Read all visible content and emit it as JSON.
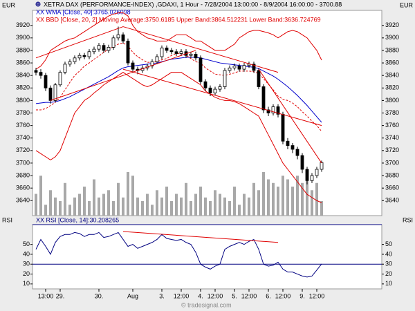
{
  "chart_data": [
    {
      "type": "candlestick",
      "title": "XETRA DAX (PERFORMANCE-INDEX) ,GDAXI, 1 Hour - 7/28/2004 13:00:00 - 8/9/2004 16:00:00 - 3700.88",
      "axis_label": "EUR",
      "credit": "© tradesignal.com",
      "categories": [
        null,
        null,
        "13:00",
        null,
        null,
        "29.",
        null,
        null,
        null,
        null,
        null,
        null,
        null,
        "30.",
        null,
        null,
        null,
        null,
        null,
        null,
        "Aug",
        null,
        null,
        null,
        null,
        null,
        "3.",
        null,
        null,
        null,
        "12:00",
        null,
        null,
        null,
        "4.",
        null,
        null,
        "12:00",
        null,
        null,
        null,
        "5.",
        null,
        null,
        "12:00",
        null,
        null,
        null,
        "6.",
        null,
        null,
        "12:00",
        null,
        null,
        null,
        "9.",
        null,
        null,
        "12:00",
        null
      ],
      "ohlc": [
        [
          3848,
          3852,
          3840,
          3845
        ],
        [
          3845,
          3850,
          3835,
          3840
        ],
        [
          3840,
          3844,
          3815,
          3820
        ],
        [
          3820,
          3824,
          3795,
          3800
        ],
        [
          3800,
          3828,
          3797,
          3825
        ],
        [
          3825,
          3848,
          3822,
          3845
        ],
        [
          3845,
          3862,
          3842,
          3858
        ],
        [
          3858,
          3866,
          3854,
          3862
        ],
        [
          3862,
          3872,
          3858,
          3868
        ],
        [
          3868,
          3876,
          3864,
          3872
        ],
        [
          3872,
          3876,
          3866,
          3870
        ],
        [
          3870,
          3882,
          3866,
          3878
        ],
        [
          3878,
          3886,
          3874,
          3882
        ],
        [
          3882,
          3892,
          3878,
          3888
        ],
        [
          3888,
          3892,
          3876,
          3880
        ],
        [
          3880,
          3889,
          3876,
          3885
        ],
        [
          3885,
          3904,
          3881,
          3900
        ],
        [
          3900,
          3918,
          3896,
          3905
        ],
        [
          3905,
          3909,
          3891,
          3895
        ],
        [
          3895,
          3899,
          3856,
          3860
        ],
        [
          3860,
          3864,
          3844,
          3850
        ],
        [
          3850,
          3854,
          3842,
          3848
        ],
        [
          3848,
          3856,
          3844,
          3852
        ],
        [
          3852,
          3859,
          3848,
          3855
        ],
        [
          3855,
          3866,
          3851,
          3862
        ],
        [
          3862,
          3874,
          3858,
          3870
        ],
        [
          3870,
          3888,
          3866,
          3884
        ],
        [
          3884,
          3888,
          3876,
          3880
        ],
        [
          3880,
          3884,
          3874,
          3878
        ],
        [
          3878,
          3882,
          3871,
          3875
        ],
        [
          3875,
          3882,
          3871,
          3878
        ],
        [
          3878,
          3882,
          3868,
          3872
        ],
        [
          3872,
          3878,
          3868,
          3874
        ],
        [
          3874,
          3878,
          3864,
          3868
        ],
        [
          3868,
          3872,
          3826,
          3830
        ],
        [
          3830,
          3834,
          3815,
          3820
        ],
        [
          3820,
          3824,
          3807,
          3812
        ],
        [
          3812,
          3822,
          3808,
          3818
        ],
        [
          3818,
          3826,
          3814,
          3822
        ],
        [
          3822,
          3852,
          3818,
          3848
        ],
        [
          3848,
          3856,
          3844,
          3852
        ],
        [
          3852,
          3859,
          3848,
          3855
        ],
        [
          3855,
          3859,
          3846,
          3850
        ],
        [
          3850,
          3860,
          3846,
          3856
        ],
        [
          3856,
          3862,
          3852,
          3858
        ],
        [
          3858,
          3862,
          3844,
          3848
        ],
        [
          3848,
          3852,
          3818,
          3822
        ],
        [
          3822,
          3826,
          3780,
          3785
        ],
        [
          3785,
          3790,
          3775,
          3780
        ],
        [
          3780,
          3794,
          3776,
          3790
        ],
        [
          3790,
          3794,
          3773,
          3778
        ],
        [
          3778,
          3782,
          3730,
          3735
        ],
        [
          3735,
          3740,
          3722,
          3728
        ],
        [
          3728,
          3732,
          3716,
          3722
        ],
        [
          3722,
          3726,
          3706,
          3712
        ],
        [
          3712,
          3716,
          3684,
          3690
        ],
        [
          3690,
          3694,
          3666,
          3672
        ],
        [
          3672,
          3684,
          3668,
          3680
        ],
        [
          3680,
          3694,
          3676,
          3690
        ],
        [
          3690,
          3704,
          3686,
          3700.88
        ]
      ],
      "volume": [
        30,
        55,
        15,
        35,
        25,
        20,
        45,
        15,
        25,
        30,
        40,
        20,
        50,
        25,
        30,
        35,
        20,
        45,
        25,
        60,
        55,
        25,
        20,
        30,
        15,
        35,
        25,
        40,
        20,
        30,
        25,
        45,
        20,
        30,
        40,
        25,
        20,
        35,
        30,
        25,
        20,
        40,
        15,
        30,
        25,
        45,
        35,
        60,
        50,
        45,
        40,
        55,
        50,
        40,
        55,
        45,
        60,
        35,
        45,
        20
      ],
      "volume_color": "#a8a8a8",
      "up_color": "#ffffff",
      "down_color": "#000000",
      "series": [
        {
          "name": "XX WMA [Close, 40]:3765.026098",
          "color": "#0000cc",
          "values": [
            3795,
            3796,
            3797,
            3797,
            3798,
            3800,
            3803,
            3806,
            3810,
            3814,
            3818,
            3822,
            3826,
            3830,
            3834,
            3838,
            3843,
            3848,
            3852,
            3854,
            3855,
            3856,
            3857,
            3858,
            3859,
            3860,
            3862,
            3864,
            3866,
            3867,
            3868,
            3869,
            3869,
            3869,
            3868,
            3866,
            3864,
            3862,
            3860,
            3859,
            3858,
            3857,
            3856,
            3855,
            3854,
            3853,
            3851,
            3847,
            3843,
            3839,
            3834,
            3828,
            3822,
            3815,
            3808,
            3800,
            3792,
            3783,
            3774,
            3765.026098
          ]
        },
        {
          "name": "XX BBD [Close, 20, 2] Moving Average:3750.6185 Upper Band:3864.512231 Lower Band:3636.724769",
          "color": "#e00000",
          "values": [
            3785,
            3785,
            3787,
            3792,
            3797,
            3805,
            3817,
            3829,
            3840,
            3847,
            3855,
            3860,
            3866,
            3871,
            3877,
            3882,
            3886,
            3890,
            3892,
            3887,
            3877,
            3870,
            3865,
            3861,
            3861,
            3862,
            3865,
            3867,
            3872,
            3875,
            3875,
            3872,
            3867,
            3862,
            3860,
            3852,
            3847,
            3842,
            3841,
            3840,
            3842,
            3844,
            3847,
            3847,
            3847,
            3846,
            3843,
            3835,
            3826,
            3817,
            3807,
            3802,
            3800,
            3796,
            3790,
            3782,
            3775,
            3767,
            3760,
            3750.6185
          ],
          "upper": [
            3850,
            3855,
            3865,
            3880,
            3885,
            3890,
            3895,
            3898,
            3900,
            3905,
            3910,
            3915,
            3920,
            3925,
            3930,
            3935,
            3938,
            3940,
            3940,
            3935,
            3920,
            3910,
            3905,
            3900,
            3898,
            3895,
            3895,
            3895,
            3900,
            3905,
            3905,
            3905,
            3900,
            3895,
            3895,
            3890,
            3885,
            3880,
            3880,
            3880,
            3885,
            3890,
            3900,
            3905,
            3910,
            3912,
            3912,
            3910,
            3908,
            3905,
            3900,
            3905,
            3910,
            3912,
            3910,
            3905,
            3900,
            3890,
            3880,
            3864.512231
          ],
          "lower": [
            3720,
            3715,
            3710,
            3705,
            3710,
            3720,
            3740,
            3760,
            3780,
            3790,
            3800,
            3805,
            3812,
            3818,
            3825,
            3830,
            3835,
            3840,
            3845,
            3840,
            3835,
            3830,
            3825,
            3822,
            3825,
            3830,
            3835,
            3840,
            3845,
            3845,
            3845,
            3840,
            3835,
            3830,
            3825,
            3815,
            3810,
            3805,
            3802,
            3800,
            3800,
            3798,
            3795,
            3790,
            3785,
            3780,
            3775,
            3760,
            3745,
            3730,
            3715,
            3700,
            3690,
            3680,
            3670,
            3660,
            3650,
            3645,
            3640,
            3636.724769
          ]
        }
      ],
      "trendline_color": "#e00000",
      "trendlines": [
        {
          "x": [
            0,
            18
          ],
          "values": [
            3868,
            3918
          ]
        },
        {
          "x": [
            3,
            33
          ],
          "values": [
            3800,
            3880
          ]
        },
        {
          "x": [
            18,
            50
          ],
          "values": [
            3918,
            3845
          ]
        },
        {
          "x": [
            18,
            59
          ],
          "values": [
            3850,
            3760
          ]
        },
        {
          "x": [
            46,
            59
          ],
          "values": [
            3850,
            3700
          ]
        }
      ],
      "ylim": [
        3616,
        3944
      ],
      "yticks": [
        3640,
        3660,
        3680,
        3700,
        3720,
        3740,
        3760,
        3780,
        3800,
        3820,
        3840,
        3860,
        3880,
        3900,
        3920
      ]
    },
    {
      "type": "line",
      "axis_label": "RSI",
      "series": [
        {
          "name": "XX RSI [Close, 14]:30.208265",
          "color": "#000080",
          "values": [
            45,
            55,
            48,
            40,
            52,
            58,
            60,
            60,
            62,
            61,
            58,
            60,
            60,
            62,
            57,
            58,
            60,
            62,
            55,
            48,
            50,
            46,
            48,
            50,
            52,
            55,
            60,
            56,
            55,
            54,
            55,
            52,
            50,
            42,
            30,
            27,
            25,
            28,
            30,
            45,
            48,
            50,
            52,
            50,
            53,
            55,
            45,
            30,
            28,
            29,
            32,
            25,
            22,
            22,
            20,
            18,
            17,
            18,
            24,
            30.208265
          ]
        }
      ],
      "levels": [
        30,
        70
      ],
      "level_color": "#000080",
      "trendline_color": "#e00000",
      "trendlines": [
        {
          "x": [
            18,
            50
          ],
          "values": [
            63,
            52
          ]
        }
      ],
      "ylim": [
        5,
        70
      ],
      "yticks": [
        10,
        20,
        30,
        40,
        50
      ]
    }
  ]
}
